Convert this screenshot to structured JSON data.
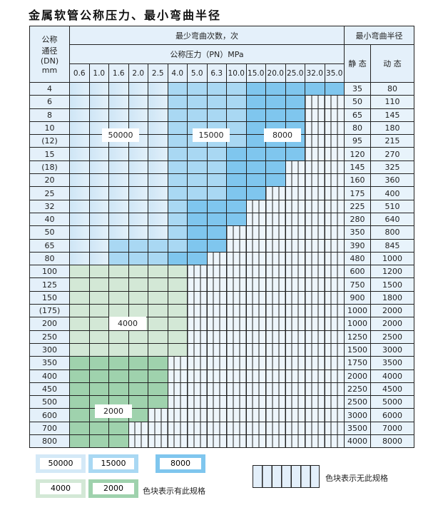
{
  "title": "金属软管公称压力、最小弯曲半径",
  "header": {
    "dn_label": [
      "公称",
      "通径",
      "(DN)",
      "mm"
    ],
    "cycles_label": "最少弯曲次数，次",
    "pressure_label": "公称压力（PN）MPa",
    "radius_label": "最小弯曲半径",
    "static_label": "静 态",
    "dynamic_label": "动 态",
    "pressures": [
      "0.6",
      "1.0",
      "1.6",
      "2.0",
      "2.5",
      "4.0",
      "5.0",
      "6.3",
      "10.0",
      "15.0",
      "20.0",
      "25.0",
      "32.0",
      "35.0"
    ]
  },
  "rows": [
    {
      "dn": "4",
      "cells": "LLLLLMMMMDDDDD",
      "static": "35",
      "dynamic": "80"
    },
    {
      "dn": "6",
      "cells": "LLLLLMMMMDDD",
      "static": "50",
      "dynamic": "110"
    },
    {
      "dn": "8",
      "cells": "LLLLLMMMMDDD",
      "static": "65",
      "dynamic": "145"
    },
    {
      "dn": "10",
      "cells": "LLLLLMMMMDDD",
      "static": "80",
      "dynamic": "180"
    },
    {
      "dn": "(12)",
      "cells": "LLLLLMMMMDDD",
      "static": "95",
      "dynamic": "215"
    },
    {
      "dn": "15",
      "cells": "LLLLLMMMDDDD",
      "static": "120",
      "dynamic": "270"
    },
    {
      "dn": "(18)",
      "cells": "LLLLLMMMDDD",
      "static": "145",
      "dynamic": "325"
    },
    {
      "dn": "20",
      "cells": "LLLLLMMMDDD",
      "static": "160",
      "dynamic": "360"
    },
    {
      "dn": "25",
      "cells": "LLLLLMMMDD",
      "static": "175",
      "dynamic": "400"
    },
    {
      "dn": "32",
      "cells": "LLLLLMDDD",
      "static": "225",
      "dynamic": "510"
    },
    {
      "dn": "40",
      "cells": "LLLLLMDDD",
      "static": "280",
      "dynamic": "640"
    },
    {
      "dn": "50",
      "cells": "LLLLLMDD",
      "static": "350",
      "dynamic": "800"
    },
    {
      "dn": "65",
      "cells": "LLMMMMDD",
      "static": "390",
      "dynamic": "845"
    },
    {
      "dn": "80",
      "cells": "LLMMMDD",
      "static": "480",
      "dynamic": "1000"
    },
    {
      "dn": "100",
      "cells": "GGGGGG",
      "static": "600",
      "dynamic": "1200"
    },
    {
      "dn": "125",
      "cells": "GGGGGG",
      "static": "750",
      "dynamic": "1500"
    },
    {
      "dn": "150",
      "cells": "GGGGGG",
      "static": "900",
      "dynamic": "1800"
    },
    {
      "dn": "(175)",
      "cells": "GGGGGG",
      "static": "1000",
      "dynamic": "2000"
    },
    {
      "dn": "200",
      "cells": "GGGGGG",
      "static": "1000",
      "dynamic": "2000"
    },
    {
      "dn": "250",
      "cells": "GGGGGG",
      "static": "1250",
      "dynamic": "2500"
    },
    {
      "dn": "300",
      "cells": "GGGGGG",
      "static": "1500",
      "dynamic": "3000"
    },
    {
      "dn": "350",
      "cells": "HHHHH",
      "static": "1750",
      "dynamic": "3500"
    },
    {
      "dn": "400",
      "cells": "HHHHH",
      "static": "2000",
      "dynamic": "4000"
    },
    {
      "dn": "450",
      "cells": "HHHHH",
      "static": "2250",
      "dynamic": "4500"
    },
    {
      "dn": "500",
      "cells": "HHHHH",
      "static": "2500",
      "dynamic": "5000"
    },
    {
      "dn": "600",
      "cells": "HHHH",
      "static": "3000",
      "dynamic": "6000"
    },
    {
      "dn": "700",
      "cells": "HHH",
      "static": "3500",
      "dynamic": "7000"
    },
    {
      "dn": "800",
      "cells": "HHH",
      "static": "4000",
      "dynamic": "8000"
    }
  ],
  "region_labels": {
    "l50000": "50000",
    "l15000": "15000",
    "l8000": "8000",
    "l4000": "4000",
    "l2000": "2000"
  },
  "legend": {
    "items": [
      {
        "label": "50000",
        "color": "#d4e9f7"
      },
      {
        "label": "15000",
        "color": "#a9d8f3"
      },
      {
        "label": "8000",
        "color": "#7fc6ee"
      },
      {
        "label": "4000",
        "color": "#d3e8d6"
      },
      {
        "label": "2000",
        "color": "#9fd2ad"
      }
    ],
    "has_spec_note": "色块表示有此规格",
    "no_spec_note": "色块表示无此规格"
  }
}
